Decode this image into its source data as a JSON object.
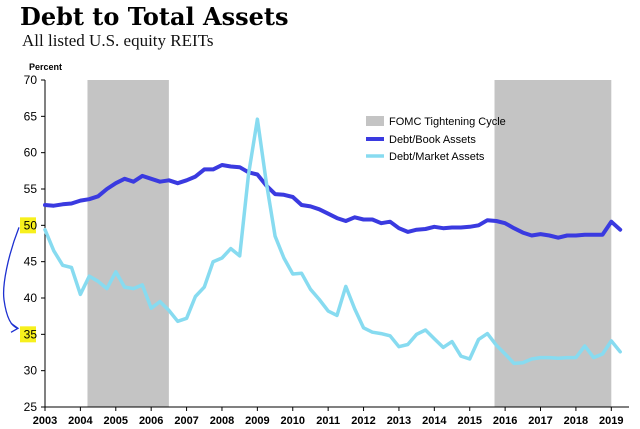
{
  "title": "Debt to Total Assets",
  "subtitle": "All listed U.S. equity REITs",
  "colors": {
    "shade": "#c4c4c4",
    "book": "#3a3ae0",
    "market": "#87dbf0",
    "highlight": "#f7f01d",
    "annotation": "#1c2fd0"
  },
  "annotation": {
    "type": "hand-drawn-arrow",
    "from_value": 50,
    "to_value": 35,
    "highlighted_ticks": [
      "50",
      "35"
    ]
  },
  "chart_data": {
    "type": "line",
    "title": "",
    "xlabel": "",
    "ylabel": "Percent",
    "xlim": [
      2003,
      2019.5
    ],
    "ylim": [
      25,
      70
    ],
    "yticks": [
      "25",
      "30",
      "35",
      "40",
      "45",
      "50",
      "55",
      "60",
      "65",
      "70"
    ],
    "xticks": [
      "2003",
      "2004",
      "2005",
      "2006",
      "2007",
      "2008",
      "2009",
      "2010",
      "2011",
      "2012",
      "2013",
      "2014",
      "2015",
      "2016",
      "2017",
      "2018",
      "2019"
    ],
    "grid": false,
    "legend_position": "top-right",
    "shaded_periods": [
      {
        "name": "FOMC Tightening Cycle",
        "start": 2004.2,
        "end": 2006.5
      },
      {
        "name": "FOMC Tightening Cycle",
        "start": 2015.7,
        "end": 2019.0
      }
    ],
    "legend": [
      "FOMC Tightening Cycle",
      "Debt/Book Assets",
      "Debt/Market Assets"
    ],
    "series": [
      {
        "name": "Debt/Book Assets",
        "x": [
          2003.0,
          2003.25,
          2003.5,
          2003.75,
          2004.0,
          2004.25,
          2004.5,
          2004.75,
          2005.0,
          2005.25,
          2005.5,
          2005.75,
          2006.0,
          2006.25,
          2006.5,
          2006.75,
          2007.0,
          2007.25,
          2007.5,
          2007.75,
          2008.0,
          2008.25,
          2008.5,
          2008.75,
          2009.0,
          2009.25,
          2009.5,
          2009.75,
          2010.0,
          2010.25,
          2010.5,
          2010.75,
          2011.0,
          2011.25,
          2011.5,
          2011.75,
          2012.0,
          2012.25,
          2012.5,
          2012.75,
          2013.0,
          2013.25,
          2013.5,
          2013.75,
          2014.0,
          2014.25,
          2014.5,
          2014.75,
          2015.0,
          2015.25,
          2015.5,
          2015.75,
          2016.0,
          2016.25,
          2016.5,
          2016.75,
          2017.0,
          2017.25,
          2017.5,
          2017.75,
          2018.0,
          2018.25,
          2018.5,
          2018.75,
          2019.0,
          2019.25
        ],
        "values": [
          52.8,
          52.7,
          52.9,
          53.0,
          53.4,
          53.6,
          54.0,
          55.0,
          55.8,
          56.4,
          56.0,
          56.8,
          56.4,
          56.0,
          56.2,
          55.8,
          56.2,
          56.7,
          57.7,
          57.7,
          58.3,
          58.1,
          58.0,
          57.3,
          57.0,
          55.5,
          54.3,
          54.2,
          53.9,
          52.8,
          52.6,
          52.2,
          51.6,
          51.0,
          50.6,
          51.1,
          50.8,
          50.8,
          50.3,
          50.5,
          49.6,
          49.1,
          49.4,
          49.5,
          49.8,
          49.6,
          49.7,
          49.7,
          49.8,
          50.0,
          50.7,
          50.6,
          50.3,
          49.6,
          49.0,
          48.6,
          48.8,
          48.6,
          48.3,
          48.6,
          48.6,
          48.7,
          48.7,
          48.7,
          50.5,
          49.4
        ]
      },
      {
        "name": "Debt/Market Assets",
        "x": [
          2003.0,
          2003.25,
          2003.5,
          2003.75,
          2004.0,
          2004.25,
          2004.5,
          2004.75,
          2005.0,
          2005.25,
          2005.5,
          2005.75,
          2006.0,
          2006.25,
          2006.5,
          2006.75,
          2007.0,
          2007.25,
          2007.5,
          2007.75,
          2008.0,
          2008.25,
          2008.5,
          2008.75,
          2009.0,
          2009.25,
          2009.5,
          2009.75,
          2010.0,
          2010.25,
          2010.5,
          2010.75,
          2011.0,
          2011.25,
          2011.5,
          2011.75,
          2012.0,
          2012.25,
          2012.5,
          2012.75,
          2013.0,
          2013.25,
          2013.5,
          2013.75,
          2014.0,
          2014.25,
          2014.5,
          2014.75,
          2015.0,
          2015.25,
          2015.5,
          2015.75,
          2016.0,
          2016.25,
          2016.5,
          2016.75,
          2017.0,
          2017.25,
          2017.5,
          2017.75,
          2018.0,
          2018.25,
          2018.5,
          2018.75,
          2019.0,
          2019.25
        ],
        "values": [
          49.4,
          46.5,
          44.5,
          44.2,
          40.5,
          43.0,
          42.3,
          41.3,
          43.6,
          41.5,
          41.3,
          41.8,
          38.6,
          39.5,
          38.3,
          36.8,
          37.2,
          40.2,
          41.5,
          45.0,
          45.5,
          46.8,
          45.8,
          57.0,
          64.6,
          56.0,
          48.5,
          45.5,
          43.3,
          43.4,
          41.2,
          39.8,
          38.2,
          37.6,
          41.6,
          38.5,
          35.9,
          35.3,
          35.1,
          34.8,
          33.3,
          33.6,
          35.0,
          35.6,
          34.4,
          33.2,
          34.0,
          32.0,
          31.6,
          34.3,
          35.1,
          33.5,
          32.3,
          31.0,
          31.1,
          31.6,
          31.8,
          31.8,
          31.7,
          31.8,
          31.8,
          33.4,
          31.8,
          32.3,
          34.1,
          32.6
        ]
      }
    ]
  }
}
